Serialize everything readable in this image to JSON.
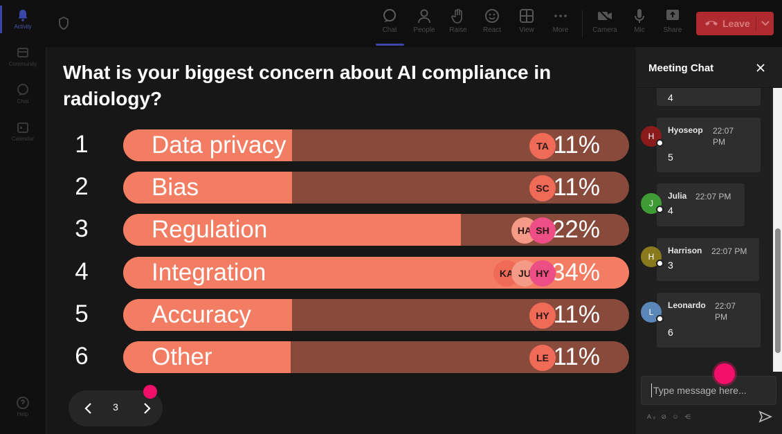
{
  "rail": [
    {
      "label": "Activity",
      "icon": "bell-icon"
    },
    {
      "label": "Community",
      "icon": "community-icon"
    },
    {
      "label": "Chat",
      "icon": "chat-icon"
    },
    {
      "label": "Calendar",
      "icon": "calendar-icon"
    },
    {
      "label": "Help",
      "icon": "help-icon"
    }
  ],
  "toolbar": {
    "chat": "Chat",
    "people": "People",
    "raise": "Raise",
    "react": "React",
    "view": "View",
    "more": "More",
    "camera": "Camera",
    "mic": "Mic",
    "share": "Share",
    "leave": "Leave"
  },
  "poll": {
    "question": "What is your biggest concern about AI compliance in radiology?",
    "options": [
      {
        "num": "1",
        "label": "Data privacy",
        "percent": "11%",
        "fill": 0.334,
        "voters": [
          "TA"
        ]
      },
      {
        "num": "2",
        "label": "Bias",
        "percent": "11%",
        "fill": 0.334,
        "voters": [
          "SC"
        ]
      },
      {
        "num": "3",
        "label": "Regulation",
        "percent": "22%",
        "fill": 0.667,
        "voters": [
          "HA",
          "SH"
        ]
      },
      {
        "num": "4",
        "label": "Integration",
        "percent": "34%",
        "fill": 1.0,
        "voters": [
          "KA",
          "JU",
          "HY"
        ]
      },
      {
        "num": "5",
        "label": "Accuracy",
        "percent": "11%",
        "fill": 0.334,
        "voters": [
          "HY"
        ]
      },
      {
        "num": "6",
        "label": "Other",
        "percent": "11%",
        "fill": 0.331,
        "voters": [
          "LE"
        ]
      }
    ],
    "page": "3"
  },
  "colors": {
    "bar_fill": "#f37d62",
    "bar_track": "#874a3b",
    "leave": "#b02b2f",
    "accent": "#3b46a8",
    "pink_dot": "#f0106a"
  },
  "chat": {
    "title": "Meeting Chat",
    "partial_message": "4",
    "messages": [
      {
        "name": "Hyoseop",
        "initial": "H",
        "time": "22:07 PM",
        "text": "5",
        "avatar_color": "#8b1a1a"
      },
      {
        "name": "Julia",
        "initial": "J",
        "time": "22:07 PM",
        "text": "4",
        "avatar_color": "#3f9c35"
      },
      {
        "name": "Harrison",
        "initial": "H",
        "time": "22:07 PM",
        "text": "3",
        "avatar_color": "#8a7a1e"
      },
      {
        "name": "Leonardo",
        "initial": "L",
        "time": "22:07 PM",
        "text": "6",
        "avatar_color": "#5a86b8"
      }
    ],
    "compose_placeholder": "Type message here...",
    "format_icons": "Aᵥ ⊘ ☺ ⋲"
  }
}
